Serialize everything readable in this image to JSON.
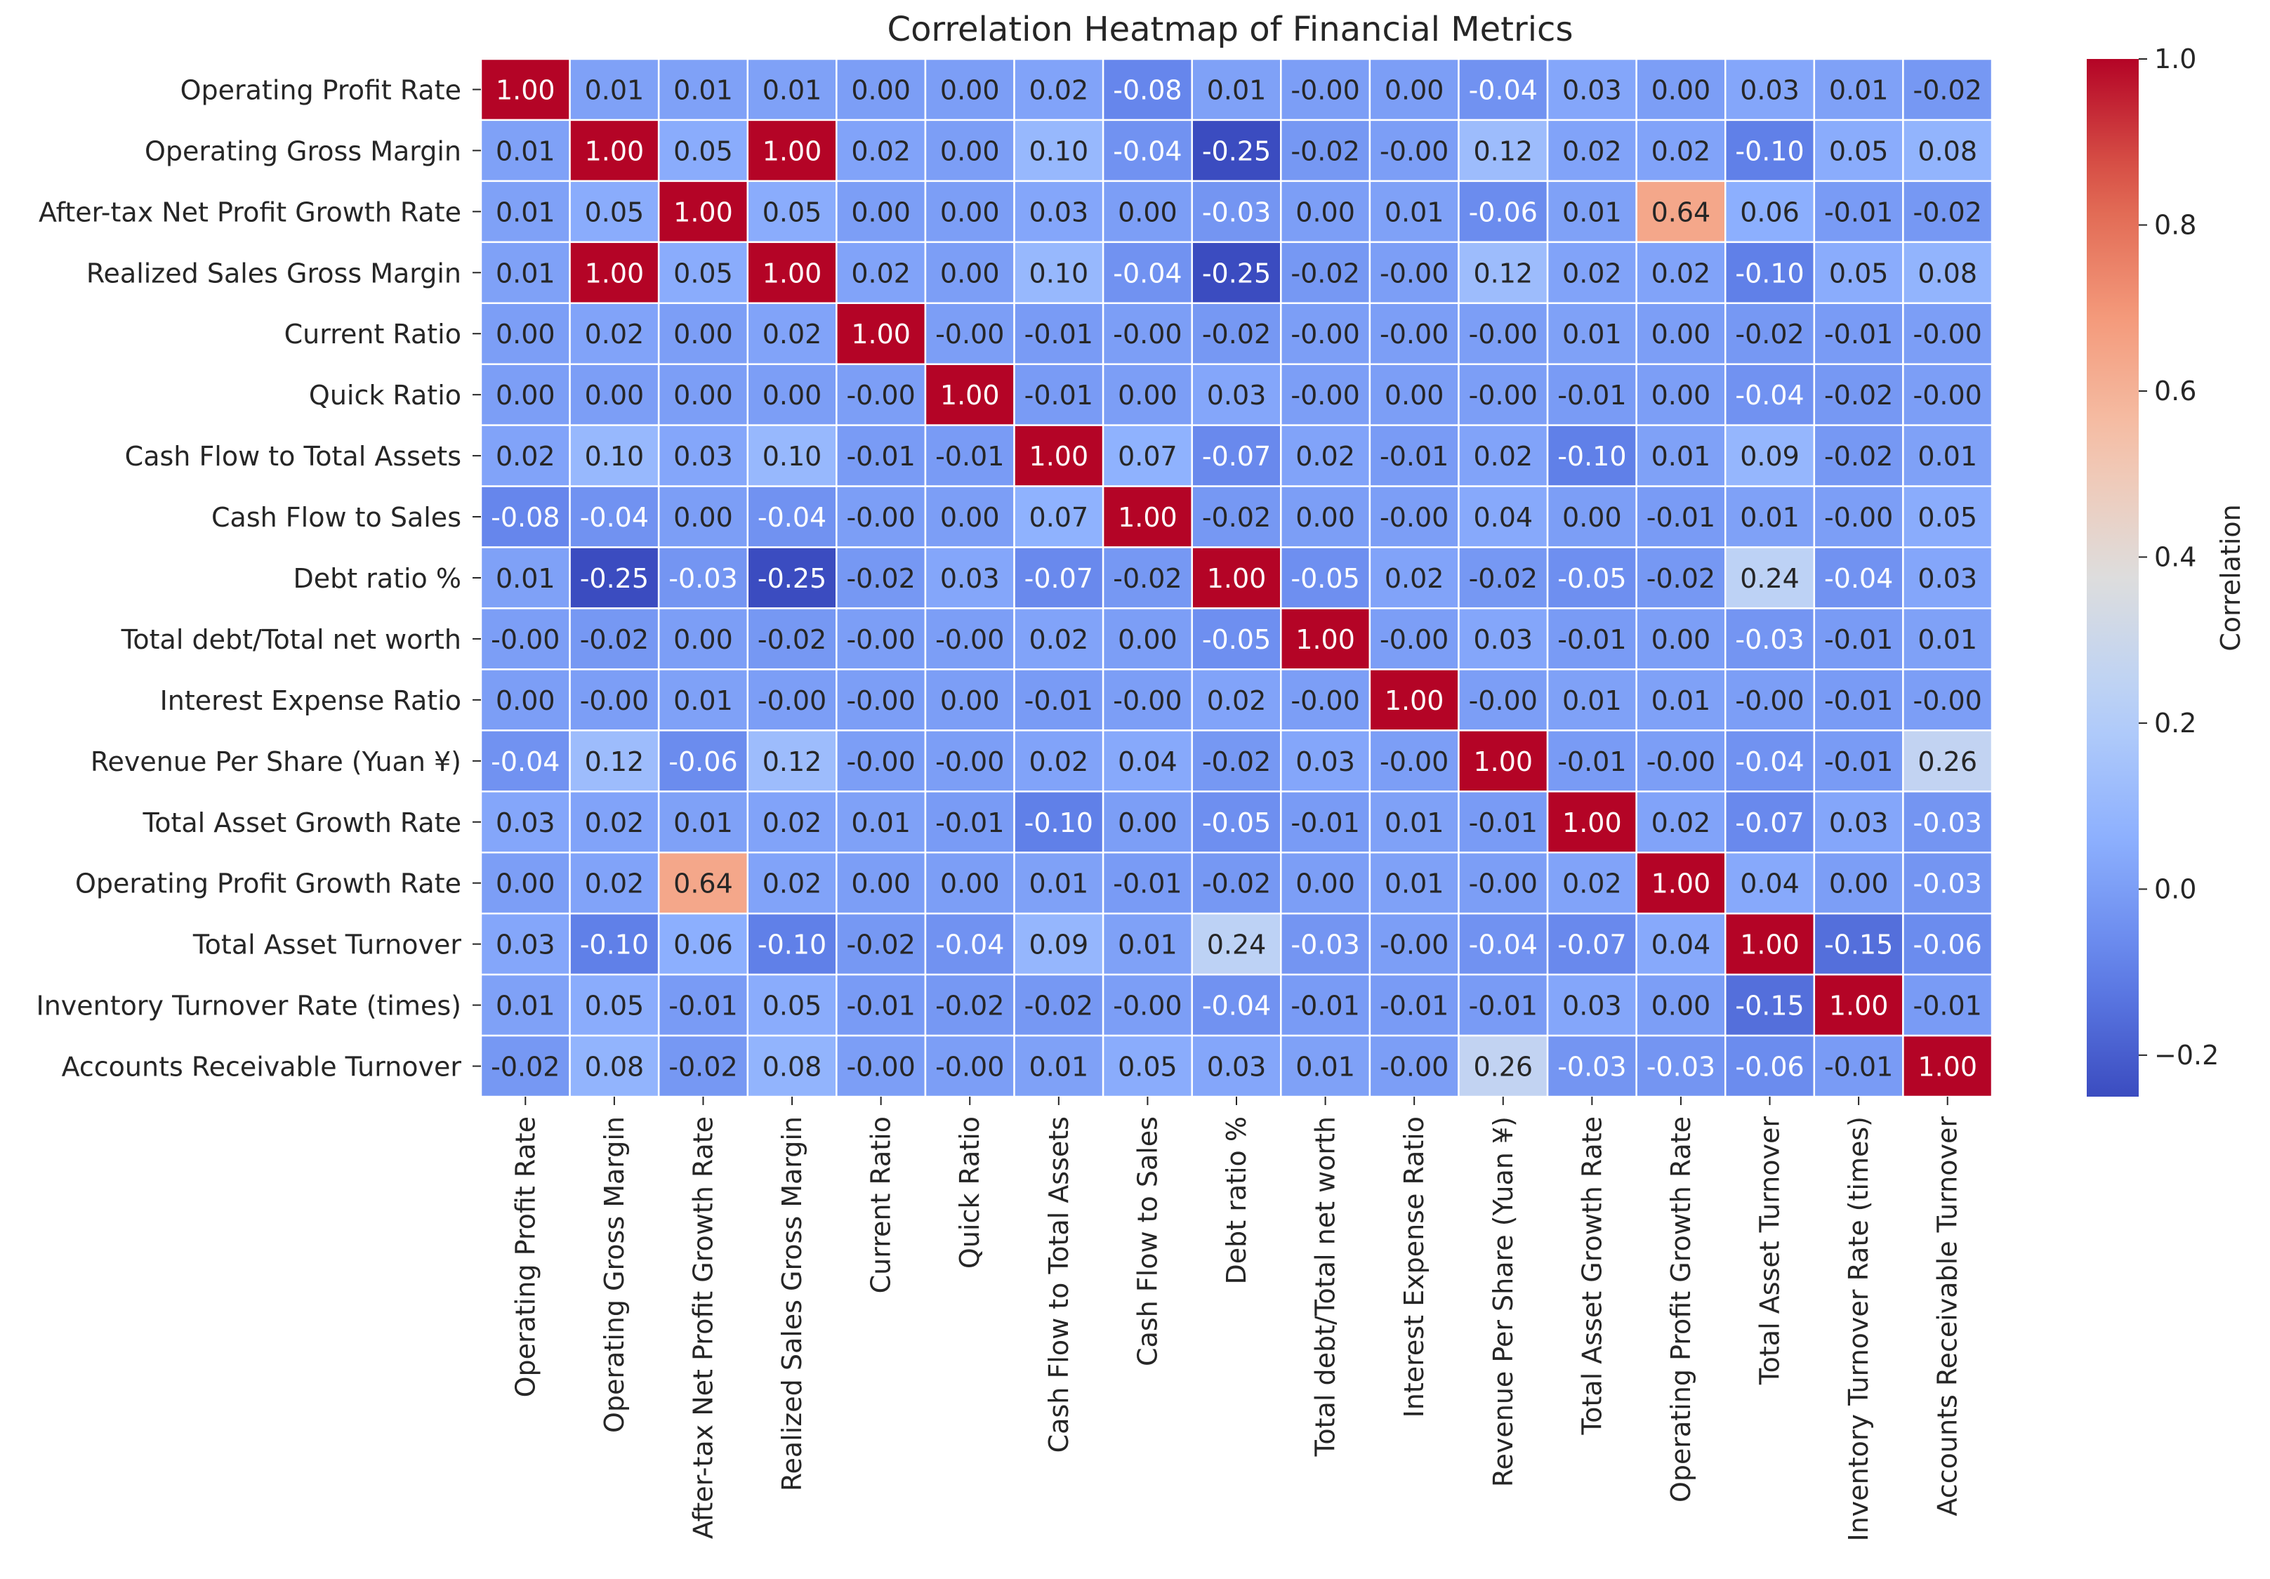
{
  "chart_data": {
    "type": "heatmap",
    "title": "Correlation Heatmap of Financial Metrics",
    "labels": [
      "Operating Profit Rate",
      "Operating Gross Margin",
      "After-tax Net Profit Growth Rate",
      "Realized Sales Gross Margin",
      "Current Ratio",
      "Quick Ratio",
      "Cash Flow to Total Assets",
      "Cash Flow to Sales",
      "Debt ratio %",
      "Total debt/Total net worth",
      "Interest Expense Ratio",
      "Revenue Per Share (Yuan ¥)",
      "Total Asset Growth Rate",
      "Operating Profit Growth Rate",
      "Total Asset Turnover",
      "Inventory Turnover Rate (times)",
      "Accounts Receivable Turnover"
    ],
    "cell_labels": [
      [
        "1.00",
        "0.01",
        "0.01",
        "0.01",
        "0.00",
        "0.00",
        "0.02",
        "-0.08",
        "0.01",
        "-0.00",
        "0.00",
        "-0.04",
        "0.03",
        "0.00",
        "0.03",
        "0.01",
        "-0.02"
      ],
      [
        "0.01",
        "1.00",
        "0.05",
        "1.00",
        "0.02",
        "0.00",
        "0.10",
        "-0.04",
        "-0.25",
        "-0.02",
        "-0.00",
        "0.12",
        "0.02",
        "0.02",
        "-0.10",
        "0.05",
        "0.08"
      ],
      [
        "0.01",
        "0.05",
        "1.00",
        "0.05",
        "0.00",
        "0.00",
        "0.03",
        "0.00",
        "-0.03",
        "0.00",
        "0.01",
        "-0.06",
        "0.01",
        "0.64",
        "0.06",
        "-0.01",
        "-0.02"
      ],
      [
        "0.01",
        "1.00",
        "0.05",
        "1.00",
        "0.02",
        "0.00",
        "0.10",
        "-0.04",
        "-0.25",
        "-0.02",
        "-0.00",
        "0.12",
        "0.02",
        "0.02",
        "-0.10",
        "0.05",
        "0.08"
      ],
      [
        "0.00",
        "0.02",
        "0.00",
        "0.02",
        "1.00",
        "-0.00",
        "-0.01",
        "-0.00",
        "-0.02",
        "-0.00",
        "-0.00",
        "-0.00",
        "0.01",
        "0.00",
        "-0.02",
        "-0.01",
        "-0.00"
      ],
      [
        "0.00",
        "0.00",
        "0.00",
        "0.00",
        "-0.00",
        "1.00",
        "-0.01",
        "0.00",
        "0.03",
        "-0.00",
        "0.00",
        "-0.00",
        "-0.01",
        "0.00",
        "-0.04",
        "-0.02",
        "-0.00"
      ],
      [
        "0.02",
        "0.10",
        "0.03",
        "0.10",
        "-0.01",
        "-0.01",
        "1.00",
        "0.07",
        "-0.07",
        "0.02",
        "-0.01",
        "0.02",
        "-0.10",
        "0.01",
        "0.09",
        "-0.02",
        "0.01"
      ],
      [
        "-0.08",
        "-0.04",
        "0.00",
        "-0.04",
        "-0.00",
        "0.00",
        "0.07",
        "1.00",
        "-0.02",
        "0.00",
        "-0.00",
        "0.04",
        "0.00",
        "-0.01",
        "0.01",
        "-0.00",
        "0.05"
      ],
      [
        "0.01",
        "-0.25",
        "-0.03",
        "-0.25",
        "-0.02",
        "0.03",
        "-0.07",
        "-0.02",
        "1.00",
        "-0.05",
        "0.02",
        "-0.02",
        "-0.05",
        "-0.02",
        "0.24",
        "-0.04",
        "0.03"
      ],
      [
        "-0.00",
        "-0.02",
        "0.00",
        "-0.02",
        "-0.00",
        "-0.00",
        "0.02",
        "0.00",
        "-0.05",
        "1.00",
        "-0.00",
        "0.03",
        "-0.01",
        "0.00",
        "-0.03",
        "-0.01",
        "0.01"
      ],
      [
        "0.00",
        "-0.00",
        "0.01",
        "-0.00",
        "-0.00",
        "0.00",
        "-0.01",
        "-0.00",
        "0.02",
        "-0.00",
        "1.00",
        "-0.00",
        "0.01",
        "0.01",
        "-0.00",
        "-0.01",
        "-0.00"
      ],
      [
        "-0.04",
        "0.12",
        "-0.06",
        "0.12",
        "-0.00",
        "-0.00",
        "0.02",
        "0.04",
        "-0.02",
        "0.03",
        "-0.00",
        "1.00",
        "-0.01",
        "-0.00",
        "-0.04",
        "-0.01",
        "0.26"
      ],
      [
        "0.03",
        "0.02",
        "0.01",
        "0.02",
        "0.01",
        "-0.01",
        "-0.10",
        "0.00",
        "-0.05",
        "-0.01",
        "0.01",
        "-0.01",
        "1.00",
        "0.02",
        "-0.07",
        "0.03",
        "-0.03"
      ],
      [
        "0.00",
        "0.02",
        "0.64",
        "0.02",
        "0.00",
        "0.00",
        "0.01",
        "-0.01",
        "-0.02",
        "0.00",
        "0.01",
        "-0.00",
        "0.02",
        "1.00",
        "0.04",
        "0.00",
        "-0.03"
      ],
      [
        "0.03",
        "-0.10",
        "0.06",
        "-0.10",
        "-0.02",
        "-0.04",
        "0.09",
        "0.01",
        "0.24",
        "-0.03",
        "-0.00",
        "-0.04",
        "-0.07",
        "0.04",
        "1.00",
        "-0.15",
        "-0.06"
      ],
      [
        "0.01",
        "0.05",
        "-0.01",
        "0.05",
        "-0.01",
        "-0.02",
        "-0.02",
        "-0.00",
        "-0.04",
        "-0.01",
        "-0.01",
        "-0.01",
        "0.03",
        "0.00",
        "-0.15",
        "1.00",
        "-0.01"
      ],
      [
        "-0.02",
        "0.08",
        "-0.02",
        "0.08",
        "-0.00",
        "-0.00",
        "0.01",
        "0.05",
        "0.03",
        "0.01",
        "-0.00",
        "0.26",
        "-0.03",
        "-0.03",
        "-0.06",
        "-0.01",
        "1.00"
      ]
    ],
    "colorscale": "coolwarm",
    "vmin": -0.25,
    "vmax": 1.0,
    "colorbar": {
      "label": "Correlation",
      "ticks": [
        -0.2,
        0.0,
        0.2,
        0.4,
        0.6,
        0.8,
        1.0
      ],
      "tick_labels": [
        "−0.2",
        "0.0",
        "0.2",
        "0.4",
        "0.6",
        "0.8",
        "1.0"
      ]
    }
  }
}
